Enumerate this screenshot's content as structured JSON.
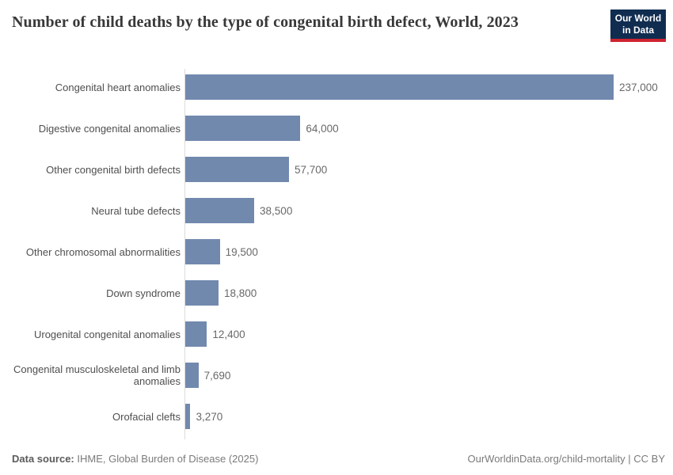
{
  "header": {
    "title": "Number of child deaths by the type of congenital birth defect, World, 2023",
    "logo": {
      "line1": "Our World",
      "line2": "in Data"
    }
  },
  "chart_data": {
    "type": "bar",
    "orientation": "horizontal",
    "title": "Number of child deaths by the type of congenital birth defect, World, 2023",
    "categories": [
      "Congenital heart anomalies",
      "Digestive congenital anomalies",
      "Other congenital birth defects",
      "Neural tube defects",
      "Other chromosomal abnormalities",
      "Down syndrome",
      "Urogenital congenital anomalies",
      "Congenital musculoskeletal and limb anomalies",
      "Orofacial clefts"
    ],
    "values": [
      237000,
      64000,
      57700,
      38500,
      19500,
      18800,
      12400,
      7690,
      3270
    ],
    "value_labels": [
      "237,000",
      "64,000",
      "57,700",
      "38,500",
      "19,500",
      "18,800",
      "12,400",
      "7,690",
      "3,270"
    ],
    "xlim": [
      0,
      237000
    ],
    "xlabel": "",
    "ylabel": "",
    "grid": false,
    "legend": false,
    "bar_color": "#7289ae"
  },
  "footer": {
    "data_source_label": "Data source:",
    "data_source_value": " IHME, Global Burden of Disease (2025)",
    "link_text": "OurWorldinData.org/child-mortality | CC BY"
  },
  "colors": {
    "bar": "#7289ae",
    "axis_line": "#dcdcdc",
    "category_label": "#4f4f4f",
    "value_label": "#696969",
    "title": "#383838",
    "logo_background": "#102d50",
    "logo_underline": "#cf2430"
  }
}
